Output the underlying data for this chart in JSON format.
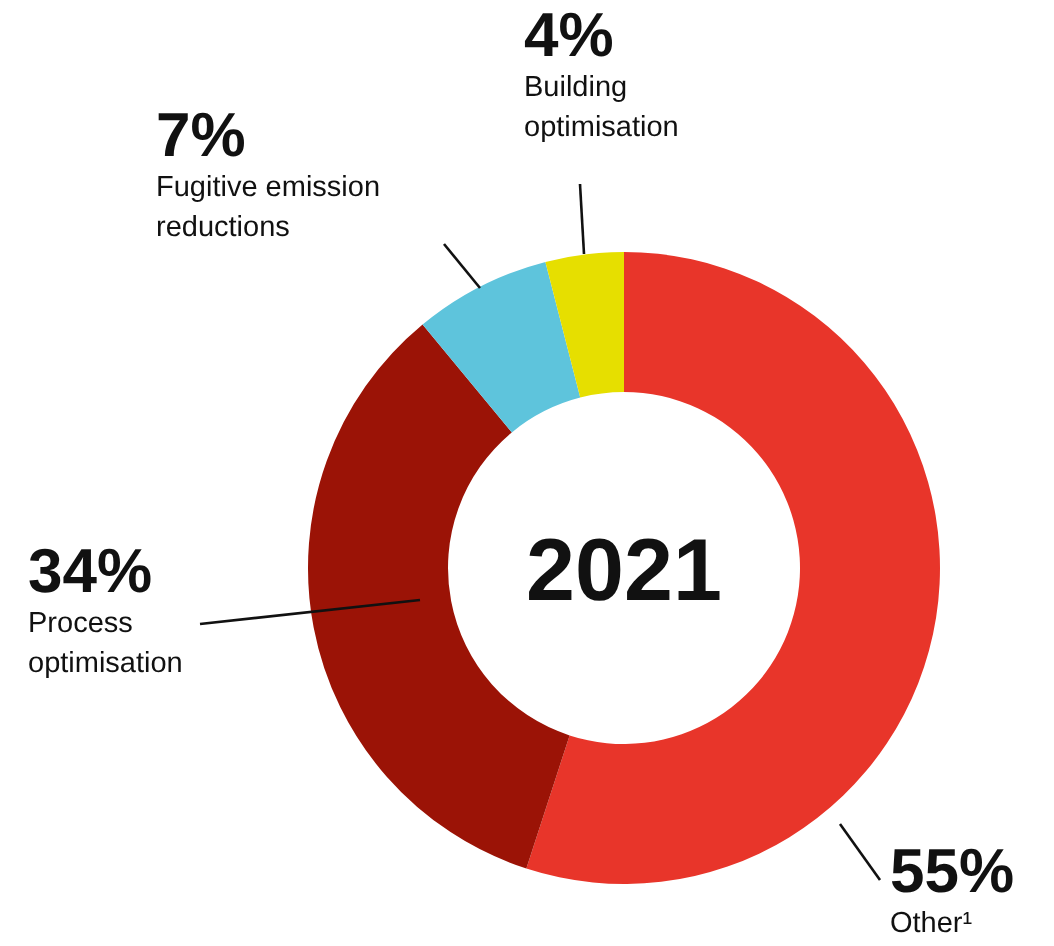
{
  "chart_data": {
    "type": "donut",
    "title": "2021",
    "categories": [
      "Other¹",
      "Process optimisation",
      "Fugitive emission reductions",
      "Building optimisation"
    ],
    "values": [
      55,
      34,
      7,
      4
    ],
    "value_labels": [
      "55%",
      "34%",
      "7%",
      "4%"
    ],
    "colors": [
      "#e8352a",
      "#9b1306",
      "#5ec4dc",
      "#e6df00"
    ]
  }
}
